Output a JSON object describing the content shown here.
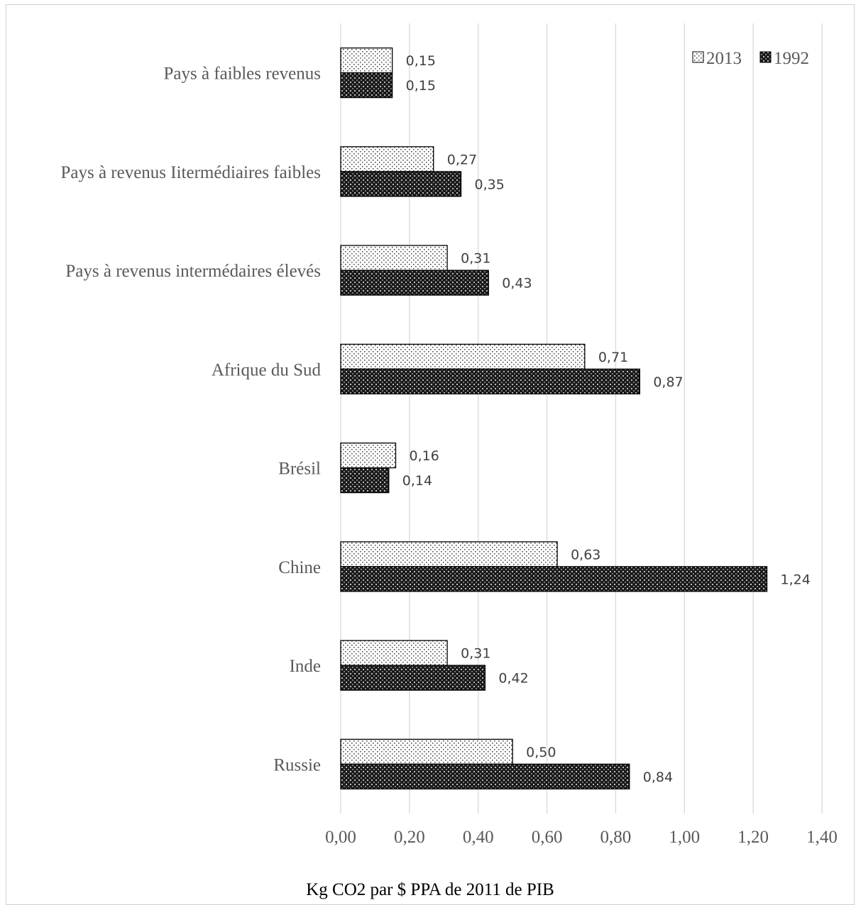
{
  "chart_data": {
    "type": "bar",
    "orientation": "horizontal",
    "categories": [
      "Pays à faibles revenus",
      "Pays à revenus Iitermédiaires faibles",
      "Pays à revenus intermédaires élevés",
      "Afrique du Sud",
      "Brésil",
      "Chine",
      "Inde",
      "Russie"
    ],
    "series": [
      {
        "name": "2013",
        "pattern": "light-dots",
        "values": [
          0.15,
          0.27,
          0.31,
          0.71,
          0.16,
          0.63,
          0.31,
          0.5
        ],
        "labels": [
          "0,15",
          "0,27",
          "0,31",
          "0,71",
          "0,16",
          "0,63",
          "0,31",
          "0,50"
        ]
      },
      {
        "name": "1992",
        "pattern": "dark-checker",
        "values": [
          0.15,
          0.35,
          0.43,
          0.87,
          0.14,
          1.24,
          0.42,
          0.84
        ],
        "labels": [
          "0,15",
          "0,35",
          "0,43",
          "0,87",
          "0,14",
          "1,24",
          "0,42",
          "0,84"
        ]
      }
    ],
    "xlabel": "Kg CO2 par $ PPA de 2011 de PIB",
    "ylabel": "",
    "xlim": [
      0,
      1.4
    ],
    "ticks": [
      0,
      0.2,
      0.4,
      0.6,
      0.8,
      1.0,
      1.2,
      1.4
    ],
    "tick_labels": [
      "0,00",
      "0,20",
      "0,40",
      "0,60",
      "0,80",
      "1,00",
      "1,20",
      "1,40"
    ],
    "grid": true,
    "legend_position": "top-right"
  },
  "colors": {
    "text": "#595959",
    "gridline": "#d9d9d9",
    "bar_outline": "#000000"
  }
}
